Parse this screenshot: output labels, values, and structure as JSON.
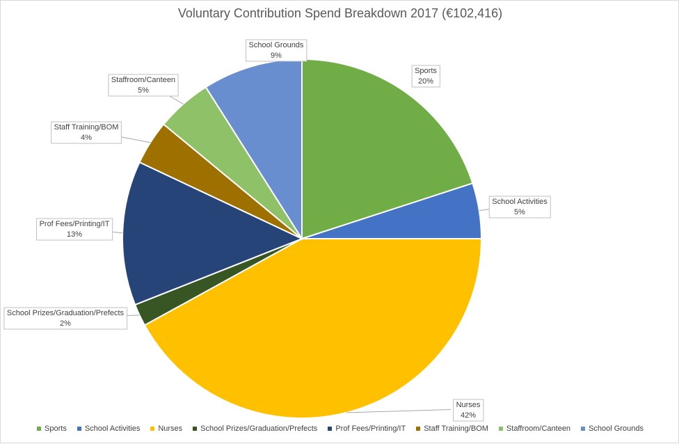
{
  "chart_data": {
    "type": "pie",
    "title": "Voluntary Contribution Spend Breakdown 2017 (€102,416)",
    "slices": [
      {
        "name": "Sports",
        "value": 20,
        "label": "20%",
        "color": "#70ad47"
      },
      {
        "name": "School Activities",
        "value": 5,
        "label": "5%",
        "color": "#4472c4"
      },
      {
        "name": "Nurses",
        "value": 42,
        "label": "42%",
        "color": "#ffc000"
      },
      {
        "name": "School Prizes/Graduation/Prefects",
        "value": 2,
        "label": "2%",
        "color": "#375623"
      },
      {
        "name": "Prof Fees/Printing/IT",
        "value": 13,
        "label": "13%",
        "color": "#264478"
      },
      {
        "name": "Staff Training/BOM",
        "value": 4,
        "label": "4%",
        "color": "#9e7000"
      },
      {
        "name": "Staffroom/Canteen",
        "value": 5,
        "label": "5%",
        "color": "#8fc168"
      },
      {
        "name": "School Grounds",
        "value": 9,
        "label": "9%",
        "color": "#698ed0"
      }
    ],
    "legend_position": "bottom"
  }
}
